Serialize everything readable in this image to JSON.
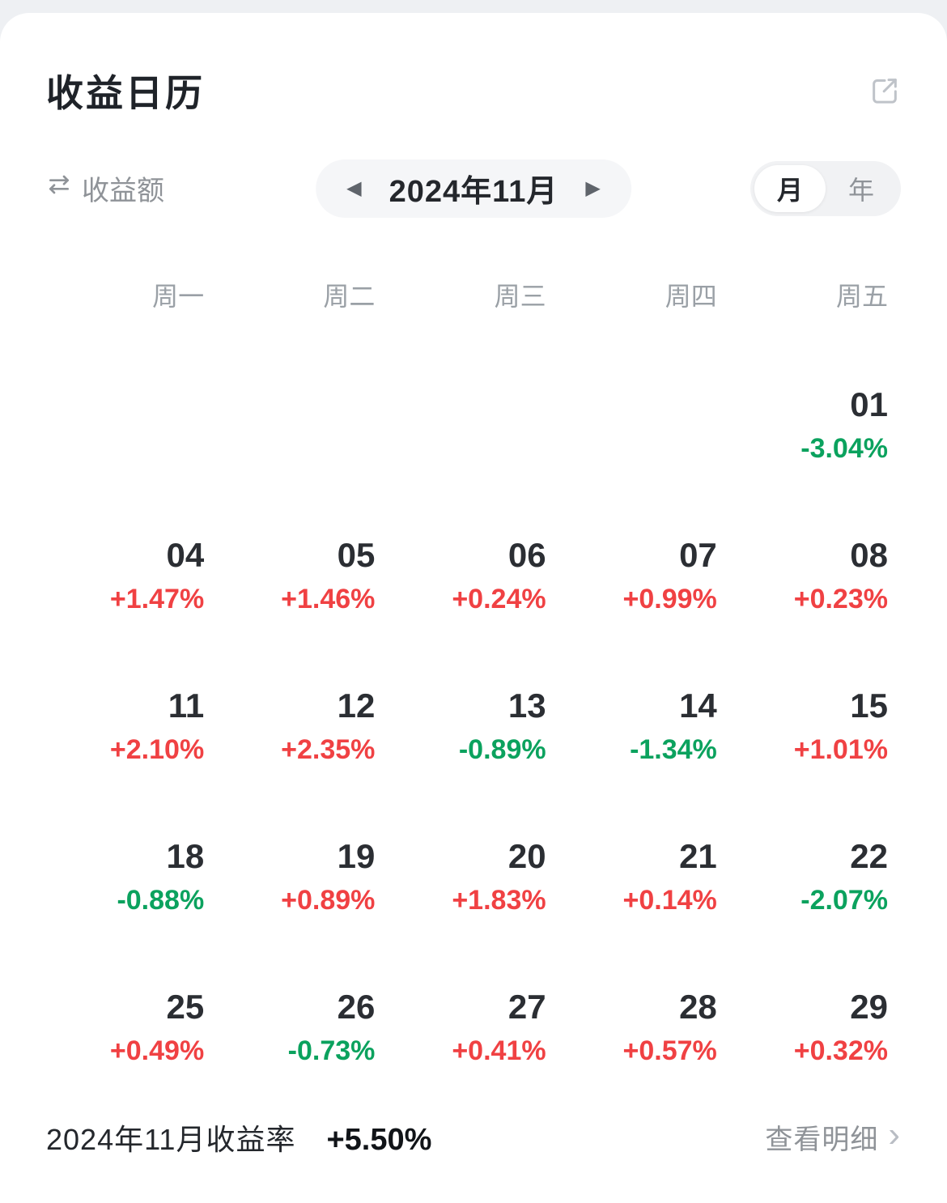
{
  "title": "收益日历",
  "toolbar": {
    "metric_label": "收益额",
    "month_label": "2024年11月",
    "prev": "◀",
    "next": "▶",
    "unit_month": "月",
    "unit_year": "年",
    "unit_selected": "月"
  },
  "calendar": {
    "weekday_headers": [
      "周一",
      "周二",
      "周三",
      "周四",
      "周五"
    ],
    "weeks": [
      [
        null,
        null,
        null,
        null,
        {
          "day": "01",
          "value": "-3.04%",
          "dir": "neg"
        }
      ],
      [
        {
          "day": "04",
          "value": "+1.47%",
          "dir": "pos"
        },
        {
          "day": "05",
          "value": "+1.46%",
          "dir": "pos"
        },
        {
          "day": "06",
          "value": "+0.24%",
          "dir": "pos"
        },
        {
          "day": "07",
          "value": "+0.99%",
          "dir": "pos"
        },
        {
          "day": "08",
          "value": "+0.23%",
          "dir": "pos"
        }
      ],
      [
        {
          "day": "11",
          "value": "+2.10%",
          "dir": "pos"
        },
        {
          "day": "12",
          "value": "+2.35%",
          "dir": "pos"
        },
        {
          "day": "13",
          "value": "-0.89%",
          "dir": "neg"
        },
        {
          "day": "14",
          "value": "-1.34%",
          "dir": "neg"
        },
        {
          "day": "15",
          "value": "+1.01%",
          "dir": "pos"
        }
      ],
      [
        {
          "day": "18",
          "value": "-0.88%",
          "dir": "neg"
        },
        {
          "day": "19",
          "value": "+0.89%",
          "dir": "pos"
        },
        {
          "day": "20",
          "value": "+1.83%",
          "dir": "pos"
        },
        {
          "day": "21",
          "value": "+0.14%",
          "dir": "pos"
        },
        {
          "day": "22",
          "value": "-2.07%",
          "dir": "neg"
        }
      ],
      [
        {
          "day": "25",
          "value": "+0.49%",
          "dir": "pos"
        },
        {
          "day": "26",
          "value": "-0.73%",
          "dir": "neg"
        },
        {
          "day": "27",
          "value": "+0.41%",
          "dir": "pos"
        },
        {
          "day": "28",
          "value": "+0.57%",
          "dir": "pos"
        },
        {
          "day": "29",
          "value": "+0.32%",
          "dir": "pos"
        }
      ]
    ]
  },
  "footer": {
    "summary_label": "2024年11月收益率",
    "summary_value": "+5.50%",
    "detail_link": "查看明细",
    "chevron": "›"
  },
  "colors": {
    "positive": "#f04143",
    "negative": "#0ba25e"
  }
}
